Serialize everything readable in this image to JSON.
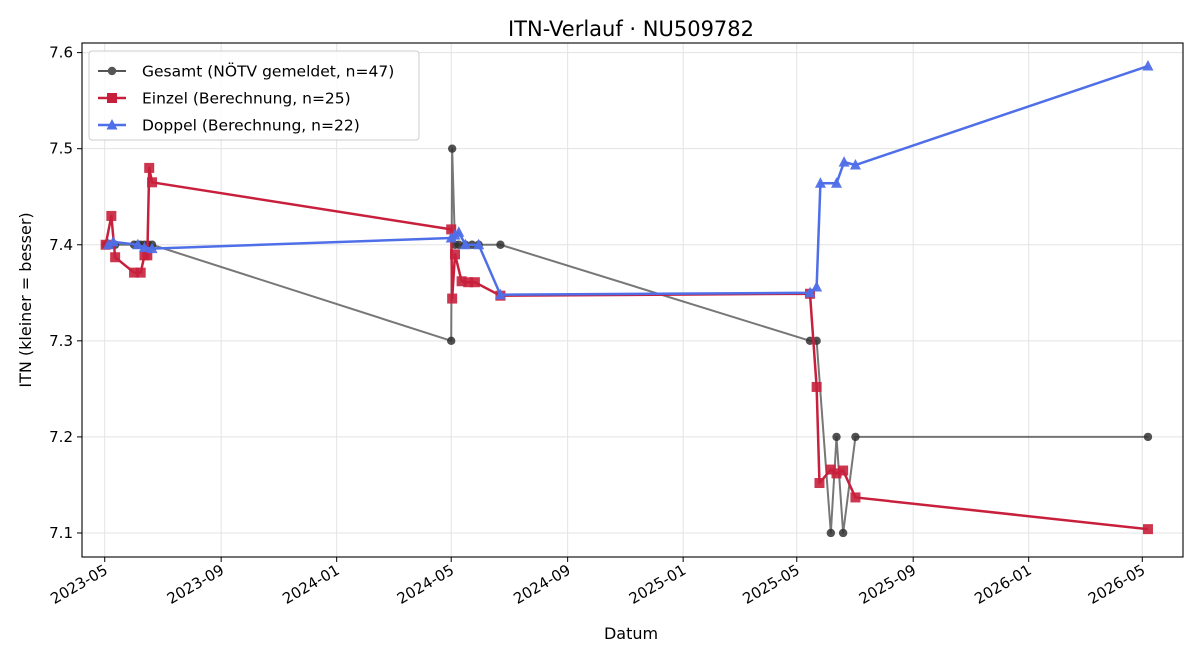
{
  "chart_data": {
    "type": "line",
    "title": "ITN-Verlauf · NU509782",
    "xlabel": "Datum",
    "ylabel": "ITN  (kleiner = besser)",
    "xlim": [
      "2023-04-07",
      "2026-06-13"
    ],
    "ylim": [
      7.075,
      7.61
    ],
    "yticks": [
      7.1,
      7.2,
      7.3,
      7.4,
      7.5,
      7.6
    ],
    "xticks": [
      "2023-05",
      "2023-09",
      "2024-01",
      "2024-05",
      "2024-09",
      "2025-01",
      "2025-05",
      "2025-09",
      "2026-01",
      "2026-05"
    ],
    "grid": true,
    "legend_position": "top-left",
    "series": [
      {
        "name": "Gesamt (NÖTV gemeldet, n=47)",
        "color": "#555555",
        "marker": "circle",
        "points": [
          [
            "2023-05-02",
            7.4
          ],
          [
            "2023-05-05",
            7.4
          ],
          [
            "2023-05-08",
            7.4
          ],
          [
            "2023-05-12",
            7.4
          ],
          [
            "2023-06-01",
            7.4
          ],
          [
            "2023-06-05",
            7.4
          ],
          [
            "2023-06-08",
            7.4
          ],
          [
            "2023-06-12",
            7.4
          ],
          [
            "2023-06-16",
            7.4
          ],
          [
            "2023-06-20",
            7.4
          ],
          [
            "2024-05-01",
            7.3
          ],
          [
            "2024-05-02",
            7.5
          ],
          [
            "2024-05-05",
            7.4
          ],
          [
            "2024-05-09",
            7.4
          ],
          [
            "2024-05-16",
            7.4
          ],
          [
            "2024-05-23",
            7.4
          ],
          [
            "2024-05-30",
            7.4
          ],
          [
            "2024-06-22",
            7.4
          ],
          [
            "2025-05-15",
            7.3
          ],
          [
            "2025-05-22",
            7.3
          ],
          [
            "2025-06-06",
            7.1
          ],
          [
            "2025-06-12",
            7.2
          ],
          [
            "2025-06-19",
            7.1
          ],
          [
            "2025-07-02",
            7.2
          ],
          [
            "2026-05-07",
            7.2
          ]
        ]
      },
      {
        "name": "Einzel (Berechnung, n=25)",
        "color": "#c8203c",
        "marker": "square",
        "points": [
          [
            "2023-05-02",
            7.4
          ],
          [
            "2023-05-08",
            7.43
          ],
          [
            "2023-05-12",
            7.387
          ],
          [
            "2023-06-01",
            7.371
          ],
          [
            "2023-06-08",
            7.371
          ],
          [
            "2023-06-12",
            7.389
          ],
          [
            "2023-06-15",
            7.389
          ],
          [
            "2023-06-17",
            7.48
          ],
          [
            "2023-06-20",
            7.465
          ],
          [
            "2024-05-01",
            7.416
          ],
          [
            "2024-05-02",
            7.344
          ],
          [
            "2024-05-05",
            7.39
          ],
          [
            "2024-05-12",
            7.362
          ],
          [
            "2024-05-19",
            7.361
          ],
          [
            "2024-05-26",
            7.361
          ],
          [
            "2024-06-22",
            7.347
          ],
          [
            "2025-05-15",
            7.349
          ],
          [
            "2025-05-22",
            7.252
          ],
          [
            "2025-05-25",
            7.152
          ],
          [
            "2025-06-06",
            7.166
          ],
          [
            "2025-06-12",
            7.162
          ],
          [
            "2025-06-19",
            7.165
          ],
          [
            "2025-07-02",
            7.137
          ],
          [
            "2026-05-07",
            7.104
          ]
        ]
      },
      {
        "name": "Doppel (Berechnung, n=22)",
        "color": "#4f6fe8",
        "marker": "triangle",
        "points": [
          [
            "2023-05-05",
            7.4
          ],
          [
            "2023-05-10",
            7.403
          ],
          [
            "2023-06-05",
            7.4
          ],
          [
            "2023-06-12",
            7.397
          ],
          [
            "2023-06-20",
            7.396
          ],
          [
            "2024-05-01",
            7.407
          ],
          [
            "2024-05-05",
            7.41
          ],
          [
            "2024-05-09",
            7.413
          ],
          [
            "2024-05-16",
            7.4
          ],
          [
            "2024-05-30",
            7.4
          ],
          [
            "2024-06-22",
            7.348
          ],
          [
            "2025-05-15",
            7.35
          ],
          [
            "2025-05-22",
            7.356
          ],
          [
            "2025-05-26",
            7.464
          ],
          [
            "2025-06-12",
            7.464
          ],
          [
            "2025-06-20",
            7.486
          ],
          [
            "2025-07-02",
            7.483
          ],
          [
            "2026-05-07",
            7.586
          ]
        ]
      }
    ]
  }
}
